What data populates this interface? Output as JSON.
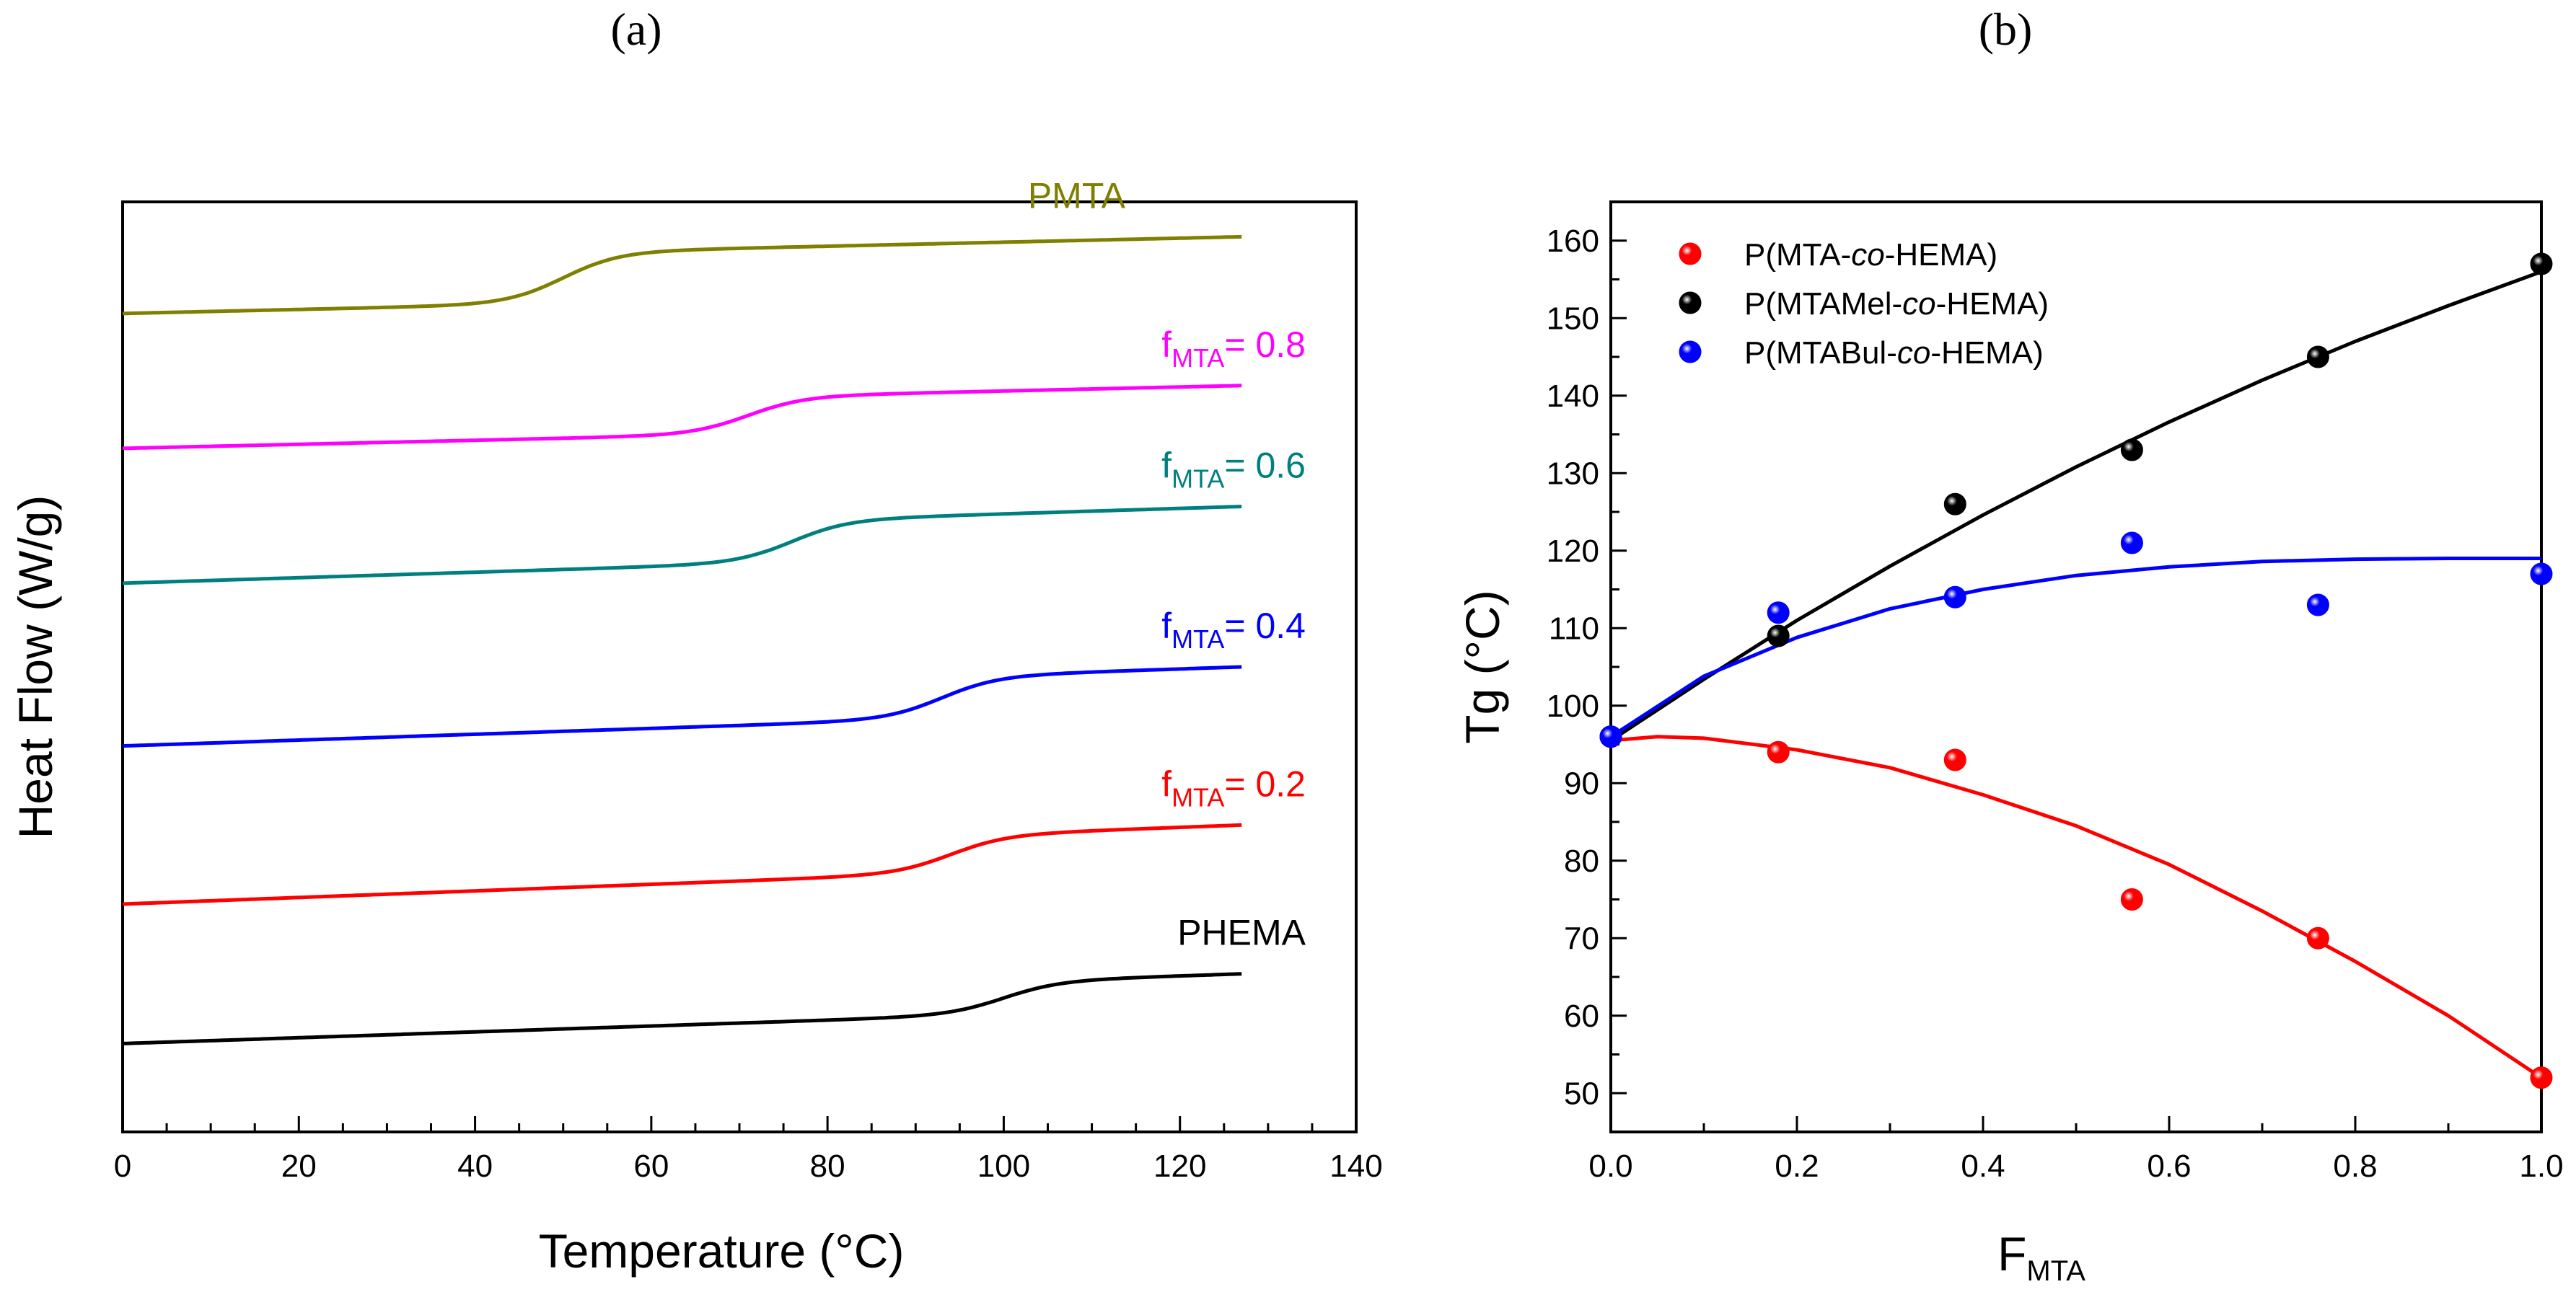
{
  "chart_data": [
    {
      "panel_label": "(a)",
      "type": "line",
      "xlabel": "Temperature (°C)",
      "ylabel": "Heat Flow (W/g)",
      "xlim": [
        0,
        140
      ],
      "x_ticks": [
        0,
        20,
        40,
        60,
        80,
        100,
        120,
        140
      ],
      "y_ticks_shown": false,
      "series": [
        {
          "name": "PMTA",
          "label_main": "PMTA",
          "color": "#7f7f00",
          "offset": 0.88,
          "tg": 50,
          "step": 0.055,
          "slope": 0.055,
          "width": 8
        },
        {
          "name": "fMTA = 0.8",
          "label_main": "f",
          "label_sub": "MTA",
          "label_rest": "= 0.8",
          "color": "#ff00ff",
          "offset": 0.735,
          "tg": 71,
          "step": 0.04,
          "slope": 0.055,
          "width": 8
        },
        {
          "name": "fMTA = 0.6",
          "label_main": "f",
          "label_sub": "MTA",
          "label_rest": "= 0.6",
          "color": "#007f7f",
          "offset": 0.59,
          "tg": 76,
          "step": 0.045,
          "slope": 0.075,
          "width": 8
        },
        {
          "name": "fMTA = 0.4",
          "label_main": "f",
          "label_sub": "MTA",
          "label_rest": "= 0.4",
          "color": "#0000ff",
          "offset": 0.415,
          "tg": 93,
          "step": 0.045,
          "slope": 0.08,
          "width": 8
        },
        {
          "name": "fMTA = 0.2",
          "label_main": "f",
          "label_sub": "MTA",
          "label_rest": "= 0.2",
          "color": "#ff0000",
          "offset": 0.245,
          "tg": 94,
          "step": 0.04,
          "slope": 0.09,
          "width": 8
        },
        {
          "name": "PHEMA",
          "label_main": "PHEMA",
          "color": "#000000",
          "offset": 0.095,
          "tg": 100,
          "step": 0.035,
          "slope": 0.08,
          "width": 8
        }
      ]
    },
    {
      "panel_label": "(b)",
      "type": "scatter",
      "xlabel_main": "F",
      "xlabel_sub": "MTA",
      "ylabel": "Tg (°C)",
      "xlim": [
        0.0,
        1.0
      ],
      "ylim": [
        45,
        165
      ],
      "x_ticks": [
        0.0,
        0.2,
        0.4,
        0.6,
        0.8,
        1.0
      ],
      "x_tick_labels": [
        "0.0",
        "0.2",
        "0.4",
        "0.6",
        "0.8",
        "1.0"
      ],
      "y_ticks": [
        50,
        60,
        70,
        80,
        90,
        100,
        110,
        120,
        130,
        140,
        150,
        160
      ],
      "series": [
        {
          "name": "P(MTA-co-HEMA)",
          "legend_pre": "P(MTA-",
          "legend_italic": "co",
          "legend_post": "-HEMA)",
          "color": "#ff0000",
          "x": [
            0.0,
            0.18,
            0.37,
            0.56,
            0.76,
            1.0
          ],
          "y": [
            96,
            94,
            93,
            75,
            70,
            52
          ],
          "fit": {
            "x": [
              0.0,
              0.05,
              0.1,
              0.2,
              0.3,
              0.4,
              0.5,
              0.6,
              0.7,
              0.8,
              0.9,
              1.0
            ],
            "y": [
              95.5,
              96,
              95.8,
              94.3,
              92,
              88.5,
              84.5,
              79.5,
              73.5,
              67,
              60,
              52
            ]
          }
        },
        {
          "name": "P(MTAMel-co-HEMA)",
          "legend_pre": "P(MTAMel-",
          "legend_italic": "co",
          "legend_post": "-HEMA)",
          "color": "#000000",
          "x": [
            0.0,
            0.18,
            0.37,
            0.56,
            0.76,
            1.0
          ],
          "y": [
            96,
            109,
            126,
            133,
            145,
            157
          ],
          "fit": {
            "x": [
              0.0,
              0.1,
              0.2,
              0.3,
              0.4,
              0.5,
              0.6,
              0.7,
              0.8,
              0.9,
              1.0
            ],
            "y": [
              95.5,
              103.4,
              111,
              118,
              124.6,
              130.8,
              136.6,
              142,
              147,
              151.6,
              156
            ]
          }
        },
        {
          "name": "P(MTABul-co-HEMA)",
          "legend_pre": "P(MTABul-",
          "legend_italic": "co",
          "legend_post": "-HEMA)",
          "color": "#0000ff",
          "x": [
            0.0,
            0.18,
            0.37,
            0.56,
            0.76,
            1.0
          ],
          "y": [
            96,
            112,
            114,
            121,
            113,
            117
          ],
          "fit": {
            "x": [
              0.0,
              0.1,
              0.2,
              0.3,
              0.4,
              0.5,
              0.6,
              0.7,
              0.8,
              0.9,
              1.0
            ],
            "y": [
              96,
              103.8,
              108.8,
              112.5,
              115,
              116.8,
              117.9,
              118.6,
              118.9,
              119,
              119
            ]
          }
        }
      ]
    }
  ]
}
